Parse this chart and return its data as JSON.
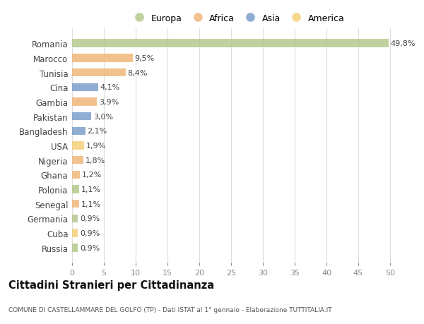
{
  "categories": [
    "Romania",
    "Marocco",
    "Tunisia",
    "Cina",
    "Gambia",
    "Pakistan",
    "Bangladesh",
    "USA",
    "Nigeria",
    "Ghana",
    "Polonia",
    "Senegal",
    "Germania",
    "Cuba",
    "Russia"
  ],
  "values": [
    49.8,
    9.5,
    8.4,
    4.1,
    3.9,
    3.0,
    2.1,
    1.9,
    1.8,
    1.2,
    1.1,
    1.1,
    0.9,
    0.9,
    0.9
  ],
  "labels": [
    "49,8%",
    "9,5%",
    "8,4%",
    "4,1%",
    "3,9%",
    "3,0%",
    "2,1%",
    "1,9%",
    "1,8%",
    "1,2%",
    "1,1%",
    "1,1%",
    "0,9%",
    "0,9%",
    "0,9%"
  ],
  "colors": [
    "#b5c98e",
    "#f0b87a",
    "#f0b87a",
    "#7b9fcc",
    "#f0b87a",
    "#7b9fcc",
    "#7b9fcc",
    "#f5d07a",
    "#f0b87a",
    "#f0b87a",
    "#b5c98e",
    "#f0b87a",
    "#b5c98e",
    "#f5d07a",
    "#b5c98e"
  ],
  "legend_labels": [
    "Europa",
    "Africa",
    "Asia",
    "America"
  ],
  "legend_colors": [
    "#b5c98e",
    "#f0b87a",
    "#7b9fcc",
    "#f5d07a"
  ],
  "title": "Cittadini Stranieri per Cittadinanza",
  "subtitle": "COMUNE DI CASTELLAMMARE DEL GOLFO (TP) - Dati ISTAT al 1° gennaio - Elaborazione TUTTITALIA.IT",
  "xlim": [
    0,
    52
  ],
  "xticks": [
    0,
    5,
    10,
    15,
    20,
    25,
    30,
    35,
    40,
    45,
    50
  ],
  "bg_color": "#ffffff",
  "grid_color": "#dddddd"
}
